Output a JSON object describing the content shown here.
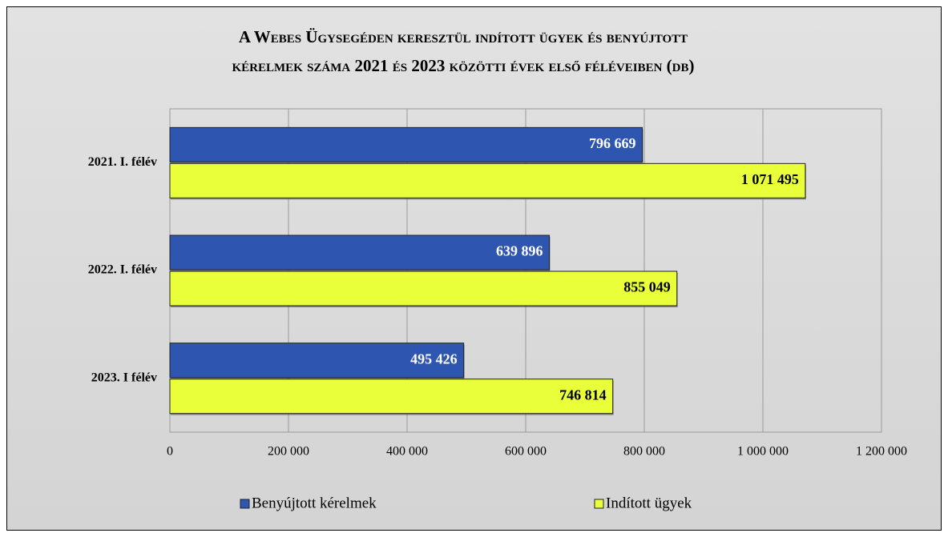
{
  "chart_data": {
    "type": "bar",
    "orientation": "horizontal",
    "title": [
      "A Webes Ügysegéden keresztül indított ügyek és benyújtott",
      "kérelmek száma 2021 és 2023 közötti évek első féléveiben (db)"
    ],
    "categories": [
      "2021. I. félév",
      "2022. I. félév",
      "2023. I félév"
    ],
    "series": [
      {
        "name": "Benyújtott kérelmek",
        "color": "#2e56b0",
        "values": [
          796669,
          639896,
          495426
        ],
        "value_labels": [
          "796 669",
          "639 896",
          "495 426"
        ]
      },
      {
        "name": "Indított ügyek",
        "color": "#e8ff3a",
        "values": [
          1071495,
          855049,
          746814
        ],
        "value_labels": [
          "1 071 495",
          "855 049",
          "746 814"
        ]
      }
    ],
    "xlim": [
      0,
      1200000
    ],
    "xticks": [
      0,
      {
        "value": 200000,
        "label": "200 000"
      },
      {
        "value": 400000,
        "label": "400 000"
      },
      {
        "value": 600000,
        "label": "600 000"
      },
      {
        "value": 800000,
        "label": "800 000"
      },
      {
        "value": 1000000,
        "label": "1 000 000"
      },
      {
        "value": 1200000,
        "label": "1 200 000"
      }
    ],
    "grid": true,
    "legend": "bottom"
  }
}
